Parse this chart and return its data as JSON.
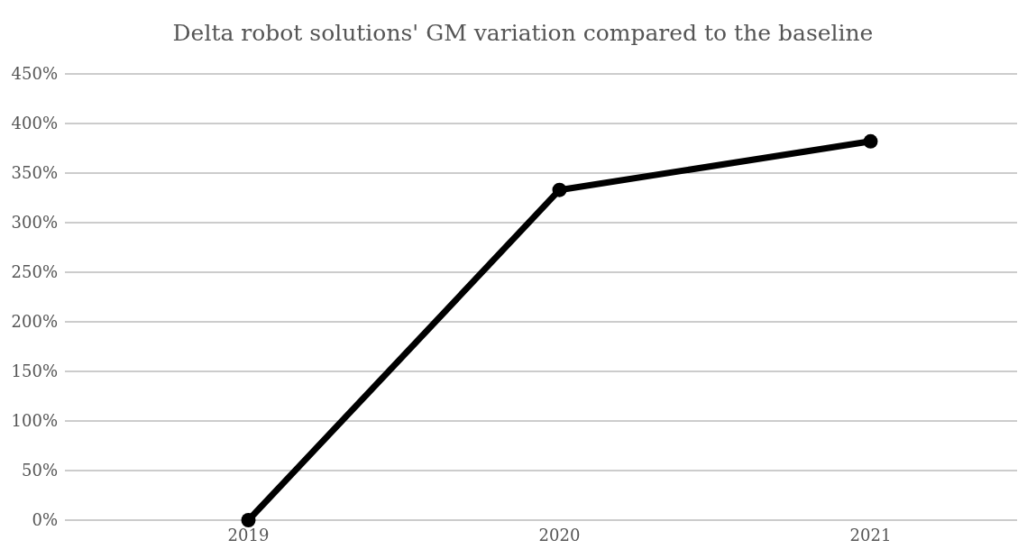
{
  "chart_data": {
    "type": "line",
    "title": "Delta robot solutions' GM variation compared to the baseline",
    "categories": [
      "2019",
      "2020",
      "2021"
    ],
    "series": [
      {
        "color": "#000000",
        "values": [
          0,
          333,
          382
        ]
      }
    ],
    "ylim": [
      0,
      450
    ],
    "yticks": [
      {
        "value": 0,
        "label": "0%"
      },
      {
        "value": 50,
        "label": "50%"
      },
      {
        "value": 100,
        "label": "100%"
      },
      {
        "value": 150,
        "label": "150%"
      },
      {
        "value": 200,
        "label": "200%"
      },
      {
        "value": 250,
        "label": "250%"
      },
      {
        "value": 300,
        "label": "300%"
      },
      {
        "value": 350,
        "label": "350%"
      },
      {
        "value": 400,
        "label": "400%"
      },
      {
        "value": 450,
        "label": "450%"
      }
    ],
    "grid": "y",
    "marker": "circle",
    "line_style": "solid"
  }
}
